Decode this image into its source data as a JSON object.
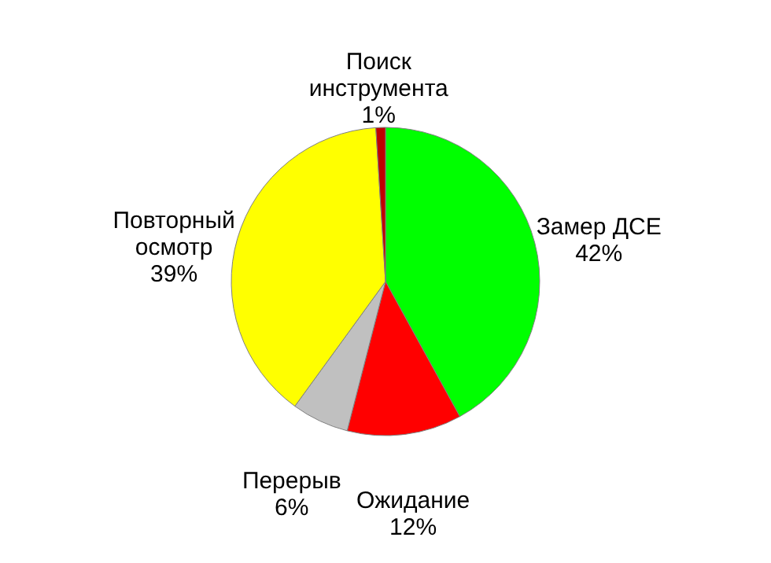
{
  "chart_data": {
    "type": "pie",
    "categories": [
      "Замер ДСЕ",
      "Ожидание",
      "Перерыв",
      "Повторный осмотр",
      "Поиск инструмента"
    ],
    "values": [
      42,
      12,
      6,
      39,
      1
    ],
    "colors": [
      "#00ff00",
      "#ff0000",
      "#c0c0c0",
      "#ffff00",
      "#c00000"
    ],
    "value_labels": [
      "42%",
      "12%",
      "6%",
      "39%",
      "1%"
    ],
    "legend": false
  }
}
